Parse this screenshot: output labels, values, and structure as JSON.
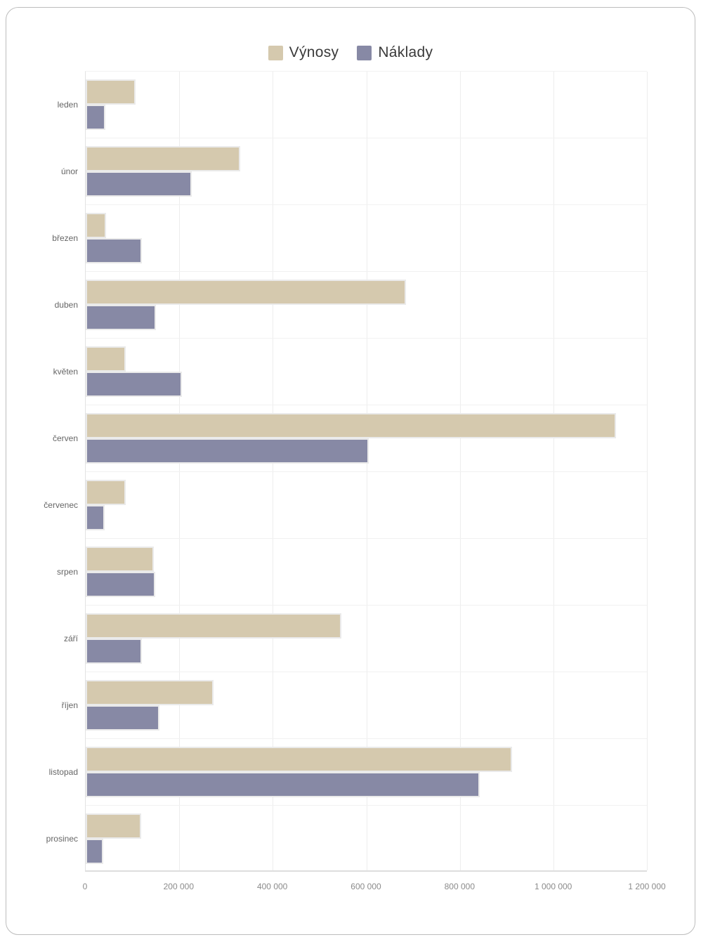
{
  "chart_data": {
    "type": "bar",
    "orientation": "horizontal",
    "title": "",
    "xlabel": "",
    "ylabel": "",
    "xlim": [
      0,
      1200000
    ],
    "grid": true,
    "legend_position": "top-center",
    "categories": [
      "leden",
      "únor",
      "březen",
      "duben",
      "květen",
      "červen",
      "červenec",
      "srpen",
      "září",
      "říjen",
      "listopad",
      "prosinec"
    ],
    "series": [
      {
        "name": "Výnosy",
        "color": "#d5c9ae",
        "values": [
          107000,
          330000,
          44000,
          685000,
          86000,
          1134000,
          85000,
          145000,
          546000,
          273000,
          912000,
          118000
        ]
      },
      {
        "name": "Náklady",
        "color": "#8789a5",
        "values": [
          42000,
          227000,
          120000,
          150000,
          206000,
          605000,
          41000,
          148000,
          120000,
          157000,
          842000,
          37000
        ]
      }
    ],
    "x_ticks": {
      "values": [
        0,
        200000,
        400000,
        600000,
        800000,
        1000000,
        1200000
      ],
      "labels": [
        "0",
        "200 000",
        "400 000",
        "600 000",
        "800 000",
        "1 000 000",
        "1 200 000"
      ]
    }
  }
}
